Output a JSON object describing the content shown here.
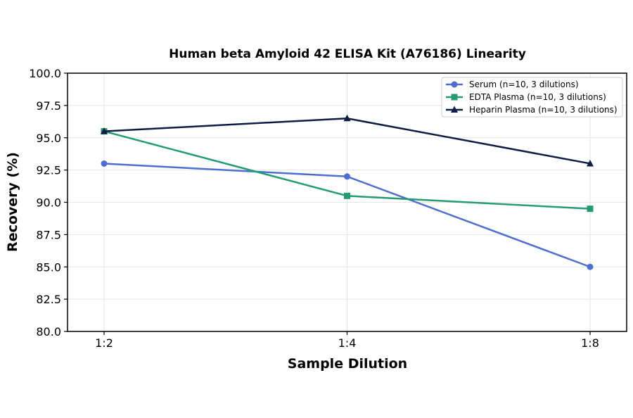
{
  "chart_data": {
    "type": "line",
    "title": "Human beta Amyloid 42 ELISA Kit (A76186) Linearity",
    "xlabel": "Sample Dilution",
    "ylabel": "Recovery (%)",
    "categories": [
      "1:2",
      "1:4",
      "1:8"
    ],
    "ylim": [
      80.0,
      100.0
    ],
    "yticks": [
      "80.0",
      "82.5",
      "85.0",
      "87.5",
      "90.0",
      "92.5",
      "95.0",
      "97.5",
      "100.0"
    ],
    "grid": true,
    "legend_position": "top-right",
    "series": [
      {
        "name": "Serum (n=10, 3 dilutions)",
        "values": [
          93.0,
          92.0,
          85.0
        ],
        "color": "#4c6fd1",
        "marker": "circle"
      },
      {
        "name": "EDTA Plasma (n=10, 3 dilutions)",
        "values": [
          95.5,
          90.5,
          89.5
        ],
        "color": "#239b74",
        "marker": "square"
      },
      {
        "name": "Heparin Plasma (n=10, 3 dilutions)",
        "values": [
          95.5,
          96.5,
          93.0
        ],
        "color": "#0f1c45",
        "marker": "triangle"
      }
    ]
  }
}
